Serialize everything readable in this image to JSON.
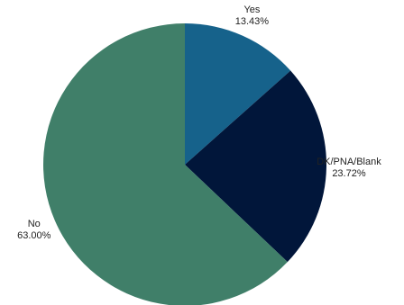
{
  "chart_data": {
    "type": "pie",
    "title": "",
    "slices": [
      {
        "label": "Yes",
        "value": 13.43,
        "value_text": "13.43%",
        "color": "#16628b"
      },
      {
        "label": "DK/PNA/Blank",
        "value": 23.72,
        "value_text": "23.72%",
        "color": "#01163a"
      },
      {
        "label": "No",
        "value": 63.0,
        "value_text": "63.00%",
        "color": "#407f69"
      }
    ],
    "start_angle": "12 o'clock",
    "direction": "clockwise",
    "legend": "none"
  }
}
